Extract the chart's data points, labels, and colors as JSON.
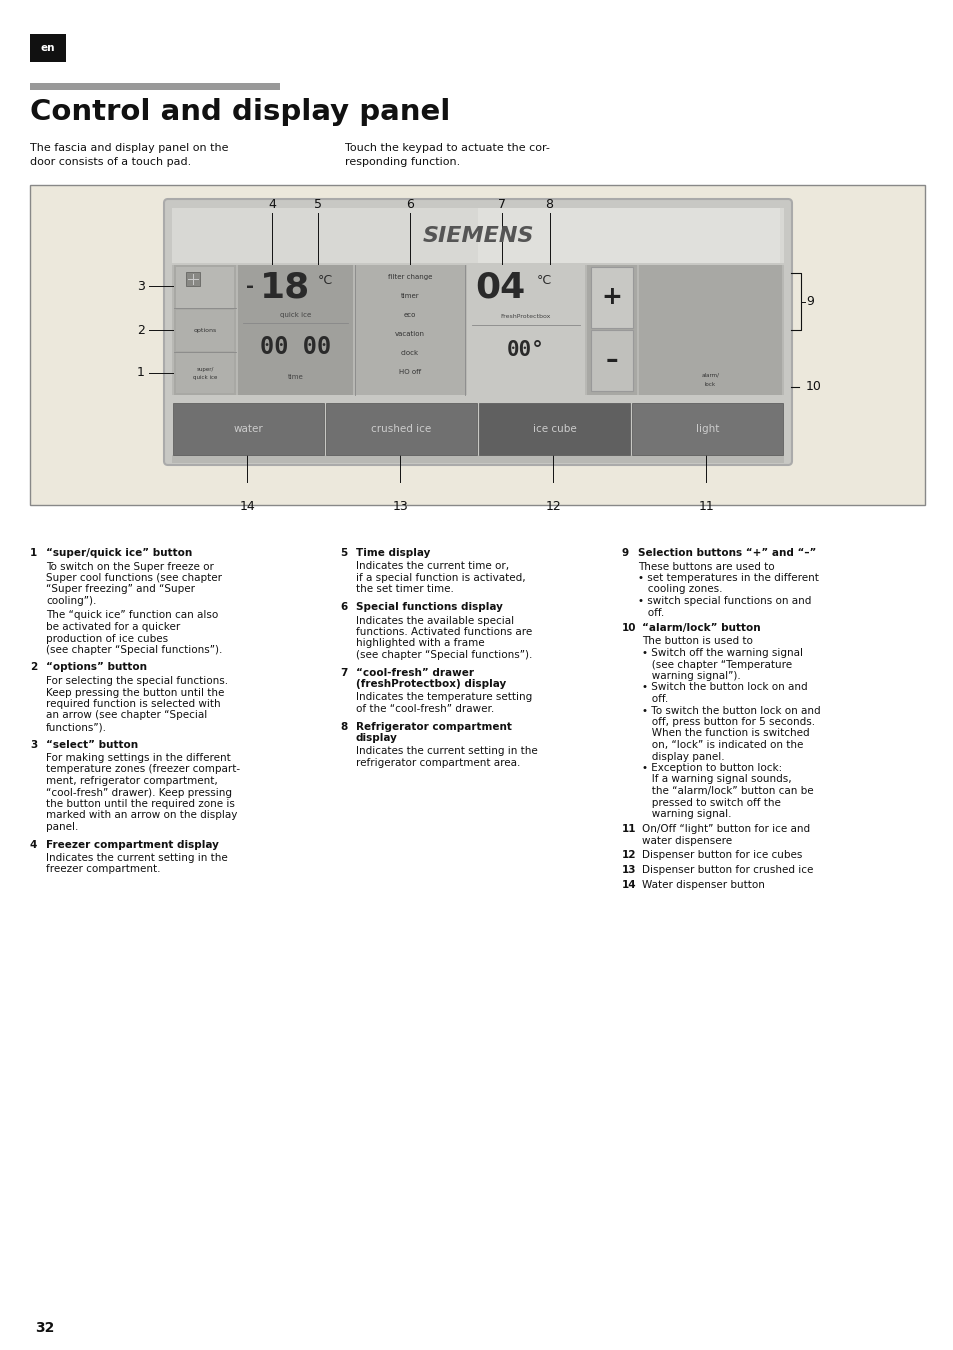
{
  "page_bg": "#ffffff",
  "tag_bg": "#1a1a1a",
  "tag_text": "en",
  "tag_text_color": "#ffffff",
  "gray_bar_color": "#999999",
  "title": "Control and display panel",
  "subtitle_left": "The fascia and display panel on the\ndoor consists of a touch pad.",
  "subtitle_right": "Touch the keypad to actuate the cor-\nresponding function.",
  "panel_bg": "#ece8dc",
  "button_labels_bottom": [
    "water",
    "crushed ice",
    "ice cube",
    "light"
  ],
  "page_number": "32"
}
